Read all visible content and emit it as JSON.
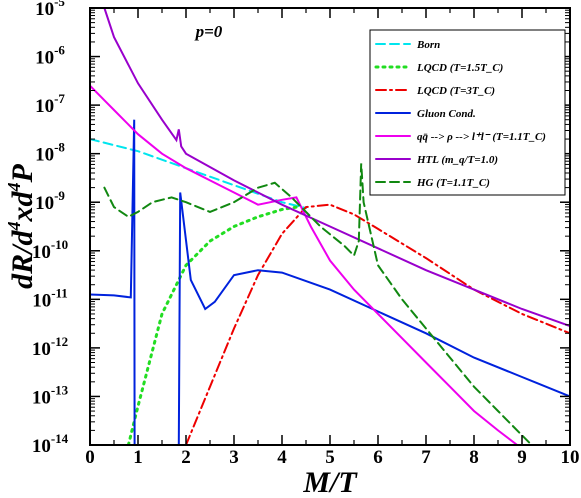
{
  "chart_data": {
    "type": "line",
    "xlabel": "M/T",
    "ylabel": "dR/d^4xd^4P",
    "xlim": [
      0,
      10
    ],
    "ylim": [
      1e-14,
      1e-05
    ],
    "yscale": "log",
    "x_ticks": [
      0,
      1,
      2,
      3,
      4,
      5,
      6,
      7,
      8,
      9,
      10
    ],
    "y_ticks": [
      -14,
      -13,
      -12,
      -11,
      -10,
      -9,
      -8,
      -7,
      -6,
      -5
    ],
    "annotation": "p=0",
    "legend_position": "top-right",
    "series": [
      {
        "name": "Born",
        "color": "#00e5ee",
        "dash": "dashed",
        "log10_points": [
          [
            0.0,
            -7.7
          ],
          [
            1,
            -7.95
          ],
          [
            2,
            -8.3
          ],
          [
            3,
            -8.65
          ],
          [
            4,
            -9.0
          ],
          [
            4.5,
            -9.12
          ]
        ]
      },
      {
        "name": "LQCD (T=1.5T_C)",
        "color": "#22dd22",
        "dash": "dotted",
        "log10_points": [
          [
            0.8,
            -14.0
          ],
          [
            1.0,
            -13.2
          ],
          [
            1.5,
            -11.3
          ],
          [
            2.0,
            -10.3
          ],
          [
            2.5,
            -9.8
          ],
          [
            3.0,
            -9.5
          ],
          [
            3.5,
            -9.3
          ],
          [
            4.0,
            -9.15
          ],
          [
            4.3,
            -9.1
          ]
        ]
      },
      {
        "name": "LQCD (T=3T_C)",
        "color": "#ee0000",
        "dash": "dashdot",
        "log10_points": [
          [
            2.0,
            -14.0
          ],
          [
            2.5,
            -12.8
          ],
          [
            3.0,
            -11.6
          ],
          [
            3.5,
            -10.5
          ],
          [
            4.0,
            -9.65
          ],
          [
            4.5,
            -9.1
          ],
          [
            5.0,
            -9.05
          ],
          [
            5.5,
            -9.25
          ],
          [
            6.0,
            -9.55
          ],
          [
            7.0,
            -10.15
          ],
          [
            8.0,
            -10.8
          ],
          [
            9.0,
            -11.3
          ],
          [
            10.0,
            -11.7
          ]
        ]
      },
      {
        "name": "Gluon Cond.",
        "color": "#0022dd",
        "dash": "solid",
        "log10_points": [
          [
            0.0,
            -10.9
          ],
          [
            0.5,
            -10.92
          ],
          [
            0.85,
            -10.96
          ],
          [
            0.92,
            -7.3
          ],
          [
            0.93,
            -14.0
          ],
          [
            1.85,
            -14.0
          ],
          [
            1.88,
            -8.8
          ],
          [
            2.1,
            -10.6
          ],
          [
            2.4,
            -11.2
          ],
          [
            2.6,
            -11.05
          ],
          [
            3.0,
            -10.5
          ],
          [
            3.5,
            -10.4
          ],
          [
            4.0,
            -10.45
          ],
          [
            5.0,
            -10.8
          ],
          [
            6.0,
            -11.25
          ],
          [
            7.0,
            -11.7
          ],
          [
            8.0,
            -12.2
          ],
          [
            9.0,
            -12.6
          ],
          [
            10.0,
            -13.0
          ]
        ]
      },
      {
        "name": "qq̄ --> ρ --> l⁺l⁻ (T=1.1T_C)",
        "color": "#ee00ee",
        "dash": "solid",
        "log10_points": [
          [
            0.0,
            -6.6
          ],
          [
            0.3,
            -6.9
          ],
          [
            0.5,
            -7.1
          ],
          [
            1.0,
            -7.6
          ],
          [
            1.5,
            -8.0
          ],
          [
            2.0,
            -8.3
          ],
          [
            2.5,
            -8.55
          ],
          [
            3.0,
            -8.8
          ],
          [
            3.5,
            -9.05
          ],
          [
            4.0,
            -8.95
          ],
          [
            4.3,
            -8.9
          ],
          [
            4.6,
            -9.5
          ],
          [
            5.0,
            -10.2
          ],
          [
            5.5,
            -10.8
          ],
          [
            6.0,
            -11.3
          ],
          [
            6.5,
            -11.8
          ],
          [
            7.0,
            -12.3
          ],
          [
            7.5,
            -12.8
          ],
          [
            8.0,
            -13.3
          ],
          [
            8.5,
            -13.7
          ],
          [
            8.9,
            -14.0
          ]
        ]
      },
      {
        "name": "HTL (m_q/T=1.0)",
        "color": "#9900cc",
        "dash": "solid",
        "log10_points": [
          [
            0.3,
            -5.0
          ],
          [
            0.5,
            -5.6
          ],
          [
            1.0,
            -6.55
          ],
          [
            1.5,
            -7.3
          ],
          [
            1.8,
            -7.72
          ],
          [
            1.85,
            -7.5
          ],
          [
            1.9,
            -7.85
          ],
          [
            2.0,
            -8.0
          ],
          [
            3.0,
            -8.55
          ],
          [
            4.0,
            -9.05
          ],
          [
            5.0,
            -9.5
          ],
          [
            6.0,
            -9.95
          ],
          [
            7.0,
            -10.4
          ],
          [
            8.0,
            -10.8
          ],
          [
            9.0,
            -11.2
          ],
          [
            10.0,
            -11.55
          ]
        ]
      },
      {
        "name": "HG (T=1.1T_C)",
        "color": "#118811",
        "dash": "dashed",
        "log10_points": [
          [
            0.3,
            -8.7
          ],
          [
            0.5,
            -9.1
          ],
          [
            0.8,
            -9.3
          ],
          [
            1.0,
            -9.2
          ],
          [
            1.3,
            -9.0
          ],
          [
            1.7,
            -8.9
          ],
          [
            2.0,
            -9.0
          ],
          [
            2.5,
            -9.2
          ],
          [
            3.0,
            -9.0
          ],
          [
            3.5,
            -8.7
          ],
          [
            3.85,
            -8.6
          ],
          [
            4.2,
            -8.9
          ],
          [
            4.8,
            -9.5
          ],
          [
            5.3,
            -9.9
          ],
          [
            5.5,
            -10.1
          ],
          [
            5.6,
            -9.8
          ],
          [
            5.65,
            -8.2
          ],
          [
            5.7,
            -9.0
          ],
          [
            6.0,
            -10.3
          ],
          [
            6.5,
            -11.0
          ],
          [
            7.0,
            -11.6
          ],
          [
            7.5,
            -12.2
          ],
          [
            8.0,
            -12.8
          ],
          [
            8.5,
            -13.3
          ],
          [
            9.0,
            -13.8
          ],
          [
            9.2,
            -14.0
          ]
        ]
      }
    ]
  }
}
